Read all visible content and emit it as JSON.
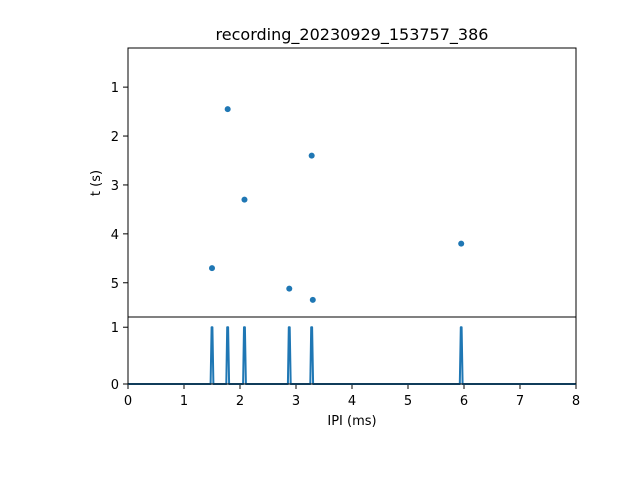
{
  "chart_data": [
    {
      "type": "scatter",
      "title": "recording_20230929_153757_386",
      "xlabel": "",
      "ylabel": "t (s)",
      "xlim": [
        0,
        8
      ],
      "ylim": [
        5.7,
        0.2
      ],
      "y_inverted": true,
      "yticks": [
        1,
        2,
        3,
        4,
        5
      ],
      "color": "#1f77b4",
      "points": [
        {
          "x": 1.78,
          "y": 1.45
        },
        {
          "x": 3.28,
          "y": 2.4
        },
        {
          "x": 2.08,
          "y": 3.3
        },
        {
          "x": 5.95,
          "y": 4.2
        },
        {
          "x": 1.5,
          "y": 4.7
        },
        {
          "x": 2.88,
          "y": 5.12
        },
        {
          "x": 3.3,
          "y": 5.35
        }
      ]
    },
    {
      "type": "line",
      "title": "",
      "xlabel": "IPI (ms)",
      "ylabel": "",
      "xlim": [
        0,
        8
      ],
      "ylim": [
        0,
        1.18
      ],
      "xticks": [
        0,
        1,
        2,
        3,
        4,
        5,
        6,
        7,
        8
      ],
      "yticks": [
        0,
        1
      ],
      "color": "#1f77b4",
      "peaks": [
        1.5,
        1.78,
        2.08,
        2.88,
        3.28,
        5.95
      ],
      "peak_height": 1
    }
  ]
}
